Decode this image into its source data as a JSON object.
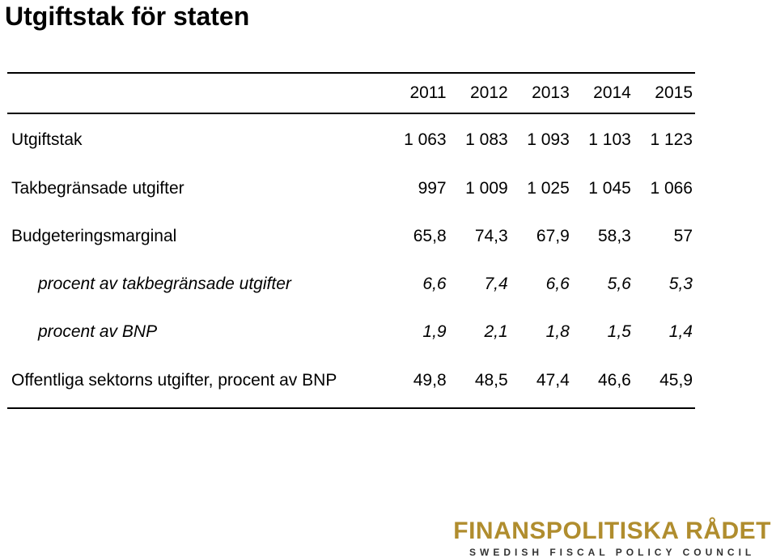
{
  "title": "Utgiftstak för staten",
  "table": {
    "years": [
      "2011",
      "2012",
      "2013",
      "2014",
      "2015"
    ],
    "rows": [
      {
        "label": "Utgiftstak",
        "values": [
          "1 063",
          "1 083",
          "1 093",
          "1 103",
          "1 123"
        ]
      },
      {
        "label": "Takbegränsade utgifter",
        "values": [
          "997",
          "1 009",
          "1 025",
          "1 045",
          "1 066"
        ]
      },
      {
        "label": "Budgeteringsmarginal",
        "values": [
          "65,8",
          "74,3",
          "67,9",
          "58,3",
          "57"
        ]
      },
      {
        "label": "procent av takbegränsade utgifter",
        "values": [
          "6,6",
          "7,4",
          "6,6",
          "5,6",
          "5,3"
        ]
      },
      {
        "label": "procent av BNP",
        "values": [
          "1,9",
          "2,1",
          "1,8",
          "1,5",
          "1,4"
        ]
      },
      {
        "label": "Offentliga sektorns utgifter, procent av BNP",
        "values": [
          "49,8",
          "48,5",
          "47,4",
          "46,6",
          "45,9"
        ]
      }
    ]
  },
  "logo": {
    "main": "FINANSPOLITISKA RÅDET",
    "sub": "SWEDISH FISCAL POLICY COUNCIL",
    "color": "#b08d2e"
  }
}
